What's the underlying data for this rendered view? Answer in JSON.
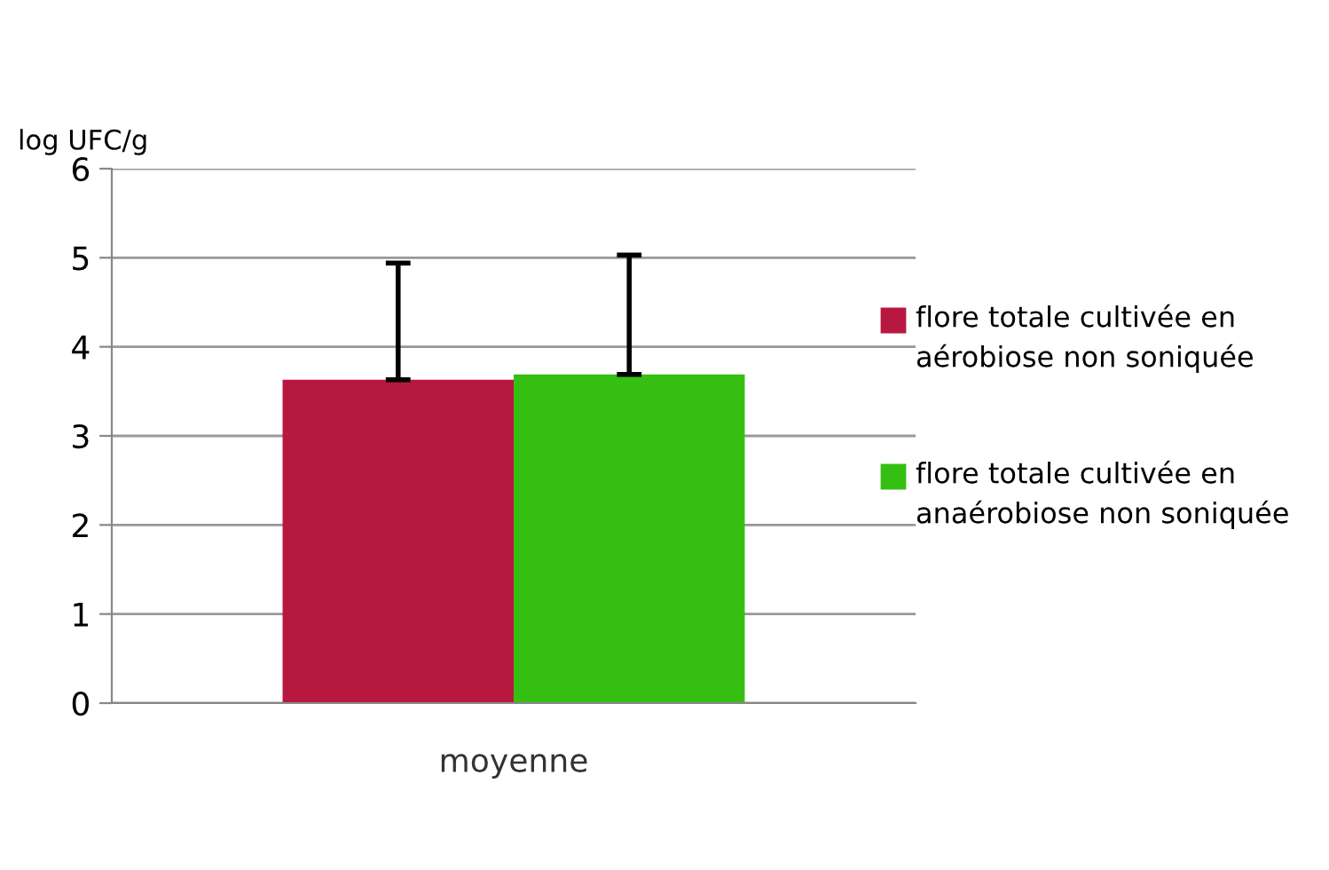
{
  "chart_data": {
    "type": "bar",
    "ylabel": "log UFC/g",
    "categories": [
      "moyenne"
    ],
    "series": [
      {
        "name": "flore totale cultivée en aérobiose non soniquée",
        "color": "#b71840",
        "values": [
          3.63
        ],
        "errors": [
          [
            3.63,
            4.94
          ]
        ]
      },
      {
        "name": "flore totale cultivée en anaérobiose non soniquée",
        "color": "#36bf13",
        "values": [
          3.69
        ],
        "errors": [
          [
            3.69,
            5.03
          ]
        ]
      }
    ],
    "ylim": [
      0,
      6
    ],
    "yticks": [
      0,
      1,
      2,
      3,
      4,
      5,
      6
    ],
    "grid": "y",
    "legend": "right"
  }
}
